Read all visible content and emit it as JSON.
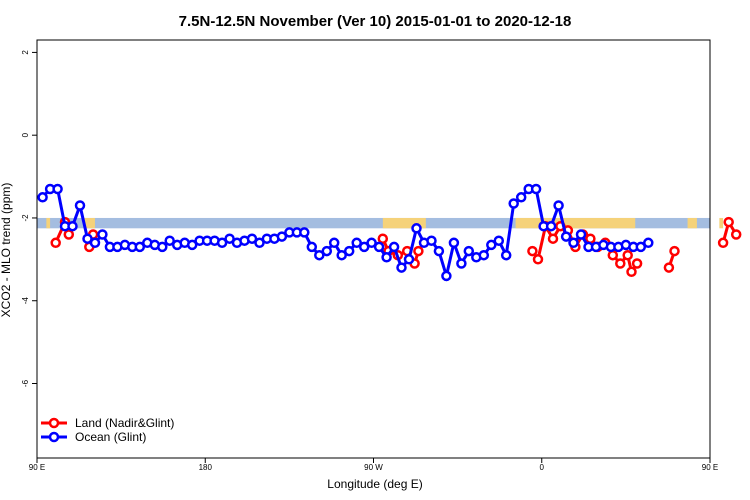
{
  "chart_data": {
    "type": "line",
    "title": "7.5N-12.5N November (Ver 10)   2015-01-01 to 2020-12-18",
    "xlabel": "Longitude (deg E)",
    "ylabel": "XCO2 - MLO trend (ppm)",
    "xlim": [
      90,
      450
    ],
    "ylim": [
      -7.8,
      2.3
    ],
    "x_ticks": [
      {
        "value": 90,
        "label": "90 E"
      },
      {
        "value": 180,
        "label": "180"
      },
      {
        "value": 270,
        "label": "90 W"
      },
      {
        "value": 360,
        "label": "0"
      },
      {
        "value": 450,
        "label": "90 E"
      },
      {
        "value": 540,
        "label": "180"
      }
    ],
    "y_ticks": [
      {
        "value": 2,
        "label": "2"
      },
      {
        "value": 0,
        "label": "0"
      },
      {
        "value": -2,
        "label": "-2"
      },
      {
        "value": -4,
        "label": "-4"
      },
      {
        "value": -6,
        "label": "-6"
      }
    ],
    "grid": false,
    "legend_position": "bottom-left",
    "band": {
      "y_range": [
        -2.25,
        -2.0
      ],
      "ocean_color": "#a4bde0",
      "land_color": "#f5d27a",
      "land_x_ranges": [
        [
          95,
          97
        ],
        [
          115,
          121
        ],
        [
          275,
          298
        ],
        [
          346,
          410
        ],
        [
          438,
          443
        ],
        [
          455,
          457
        ],
        [
          475,
          481
        ]
      ]
    },
    "series": [
      {
        "name": "Land (Nadir&Glint)",
        "color": "#ff0000",
        "segments": [
          [
            [
              100,
              -2.6
            ],
            [
              105,
              -2.1
            ],
            [
              107,
              -2.4
            ]
          ],
          [
            [
              118,
              -2.7
            ],
            [
              120,
              -2.4
            ]
          ],
          [
            [
              275,
              -2.5
            ],
            [
              278,
              -2.8
            ],
            [
              283,
              -2.9
            ],
            [
              288,
              -2.8
            ],
            [
              292,
              -3.1
            ],
            [
              294,
              -2.8
            ]
          ],
          [
            [
              355,
              -2.8
            ],
            [
              358,
              -3.0
            ],
            [
              362,
              -2.2
            ],
            [
              366,
              -2.5
            ],
            [
              370,
              -2.2
            ],
            [
              374,
              -2.3
            ],
            [
              378,
              -2.7
            ],
            [
              382,
              -2.4
            ],
            [
              386,
              -2.5
            ],
            [
              390,
              -2.7
            ],
            [
              394,
              -2.6
            ],
            [
              398,
              -2.9
            ],
            [
              402,
              -3.1
            ],
            [
              406,
              -2.9
            ],
            [
              408,
              -3.3
            ],
            [
              411,
              -3.1
            ]
          ],
          [
            [
              428,
              -3.2
            ],
            [
              431,
              -2.8
            ]
          ],
          [
            [
              457,
              -2.6
            ],
            [
              460,
              -2.1
            ],
            [
              464,
              -2.4
            ]
          ],
          [
            [
              475,
              -2.7
            ],
            [
              478,
              -2.4
            ]
          ]
        ]
      },
      {
        "name": "Ocean (Glint)",
        "color": "#0000ff",
        "segments": [
          [
            [
              93,
              -1.5
            ],
            [
              97,
              -1.3
            ],
            [
              101,
              -1.3
            ],
            [
              105,
              -2.2
            ],
            [
              109,
              -2.2
            ],
            [
              113,
              -1.7
            ],
            [
              117,
              -2.5
            ],
            [
              121,
              -2.6
            ],
            [
              125,
              -2.4
            ],
            [
              129,
              -2.7
            ],
            [
              133,
              -2.7
            ],
            [
              137,
              -2.65
            ],
            [
              141,
              -2.7
            ],
            [
              145,
              -2.7
            ],
            [
              149,
              -2.6
            ],
            [
              153,
              -2.65
            ],
            [
              157,
              -2.7
            ],
            [
              161,
              -2.55
            ],
            [
              165,
              -2.65
            ],
            [
              169,
              -2.6
            ],
            [
              173,
              -2.65
            ],
            [
              177,
              -2.55
            ],
            [
              181,
              -2.55
            ],
            [
              185,
              -2.55
            ],
            [
              189,
              -2.6
            ],
            [
              193,
              -2.5
            ],
            [
              197,
              -2.6
            ],
            [
              201,
              -2.55
            ],
            [
              205,
              -2.5
            ],
            [
              209,
              -2.6
            ],
            [
              213,
              -2.5
            ],
            [
              217,
              -2.5
            ],
            [
              221,
              -2.45
            ],
            [
              225,
              -2.35
            ],
            [
              229,
              -2.35
            ],
            [
              233,
              -2.35
            ],
            [
              237,
              -2.7
            ],
            [
              241,
              -2.9
            ],
            [
              245,
              -2.8
            ],
            [
              249,
              -2.6
            ],
            [
              253,
              -2.9
            ],
            [
              257,
              -2.8
            ],
            [
              261,
              -2.6
            ],
            [
              265,
              -2.7
            ],
            [
              269,
              -2.6
            ],
            [
              273,
              -2.7
            ],
            [
              277,
              -2.95
            ],
            [
              281,
              -2.7
            ],
            [
              285,
              -3.2
            ],
            [
              289,
              -3.0
            ],
            [
              293,
              -2.25
            ],
            [
              297,
              -2.6
            ],
            [
              301,
              -2.55
            ],
            [
              305,
              -2.8
            ],
            [
              309,
              -3.4
            ],
            [
              313,
              -2.6
            ],
            [
              317,
              -3.1
            ],
            [
              321,
              -2.8
            ],
            [
              325,
              -2.95
            ],
            [
              329,
              -2.9
            ],
            [
              333,
              -2.65
            ],
            [
              337,
              -2.55
            ],
            [
              341,
              -2.9
            ],
            [
              345,
              -1.65
            ],
            [
              349,
              -1.5
            ],
            [
              353,
              -1.3
            ],
            [
              357,
              -1.3
            ],
            [
              361,
              -2.2
            ],
            [
              365,
              -2.2
            ],
            [
              369,
              -1.7
            ],
            [
              373,
              -2.45
            ],
            [
              377,
              -2.6
            ],
            [
              381,
              -2.4
            ],
            [
              385,
              -2.7
            ],
            [
              389,
              -2.7
            ],
            [
              393,
              -2.65
            ],
            [
              397,
              -2.7
            ],
            [
              401,
              -2.7
            ],
            [
              405,
              -2.65
            ],
            [
              409,
              -2.7
            ],
            [
              413,
              -2.7
            ],
            [
              417,
              -2.6
            ]
          ]
        ]
      }
    ]
  }
}
